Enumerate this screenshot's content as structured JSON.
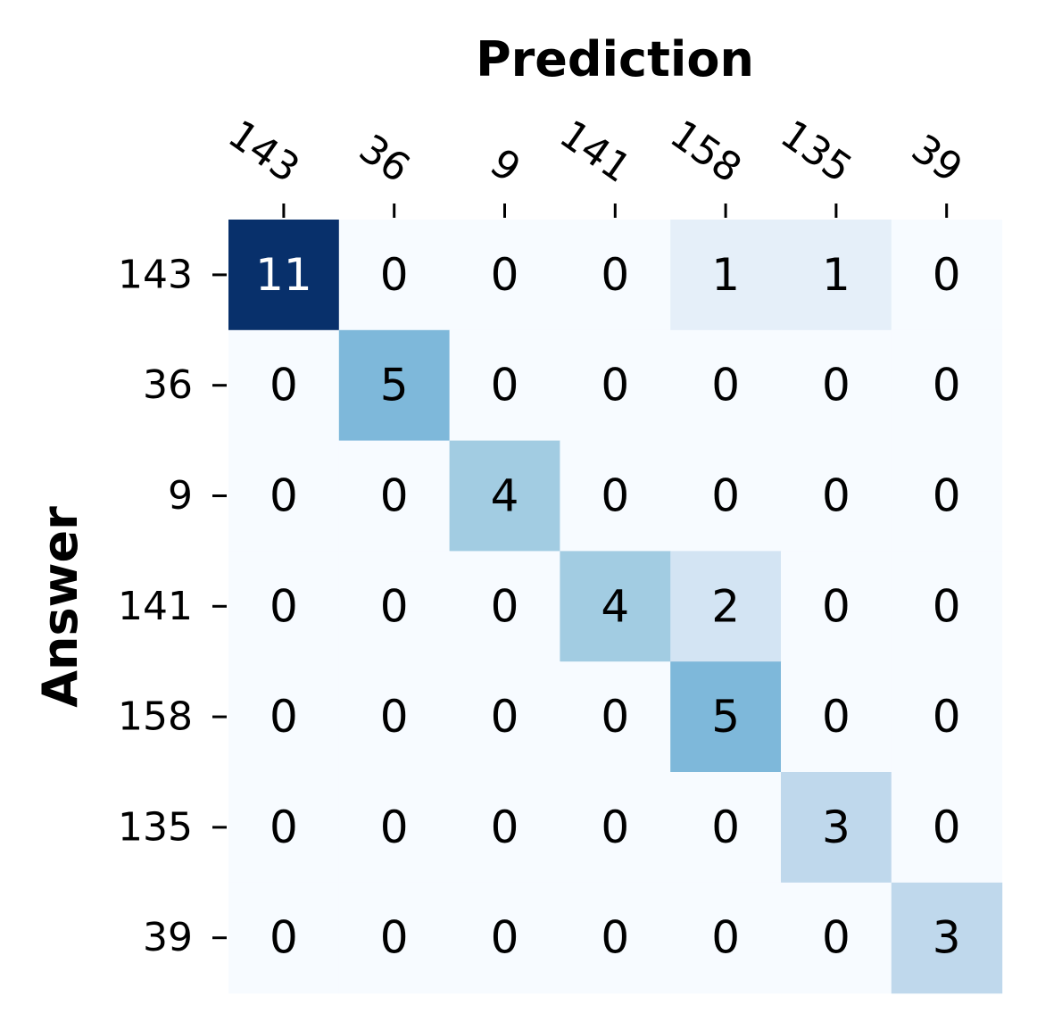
{
  "chart_data": {
    "type": "heatmap",
    "title": "",
    "xlabel": "Prediction",
    "ylabel": "Answer",
    "x_categories": [
      "143",
      "36",
      "9",
      "141",
      "158",
      "135",
      "39"
    ],
    "y_categories": [
      "143",
      "36",
      "9",
      "141",
      "158",
      "135",
      "39"
    ],
    "values": [
      [
        11,
        0,
        0,
        0,
        1,
        1,
        0
      ],
      [
        0,
        5,
        0,
        0,
        0,
        0,
        0
      ],
      [
        0,
        0,
        4,
        0,
        0,
        0,
        0
      ],
      [
        0,
        0,
        0,
        4,
        2,
        0,
        0
      ],
      [
        0,
        0,
        0,
        0,
        5,
        0,
        0
      ],
      [
        0,
        0,
        0,
        0,
        0,
        3,
        0
      ],
      [
        0,
        0,
        0,
        0,
        0,
        0,
        3
      ]
    ],
    "vmin": 0,
    "vmax": 11,
    "colormap": "Blues",
    "colorbar": false,
    "x_axis_position": "top",
    "x_tick_rotation": -35,
    "grid": false
  }
}
